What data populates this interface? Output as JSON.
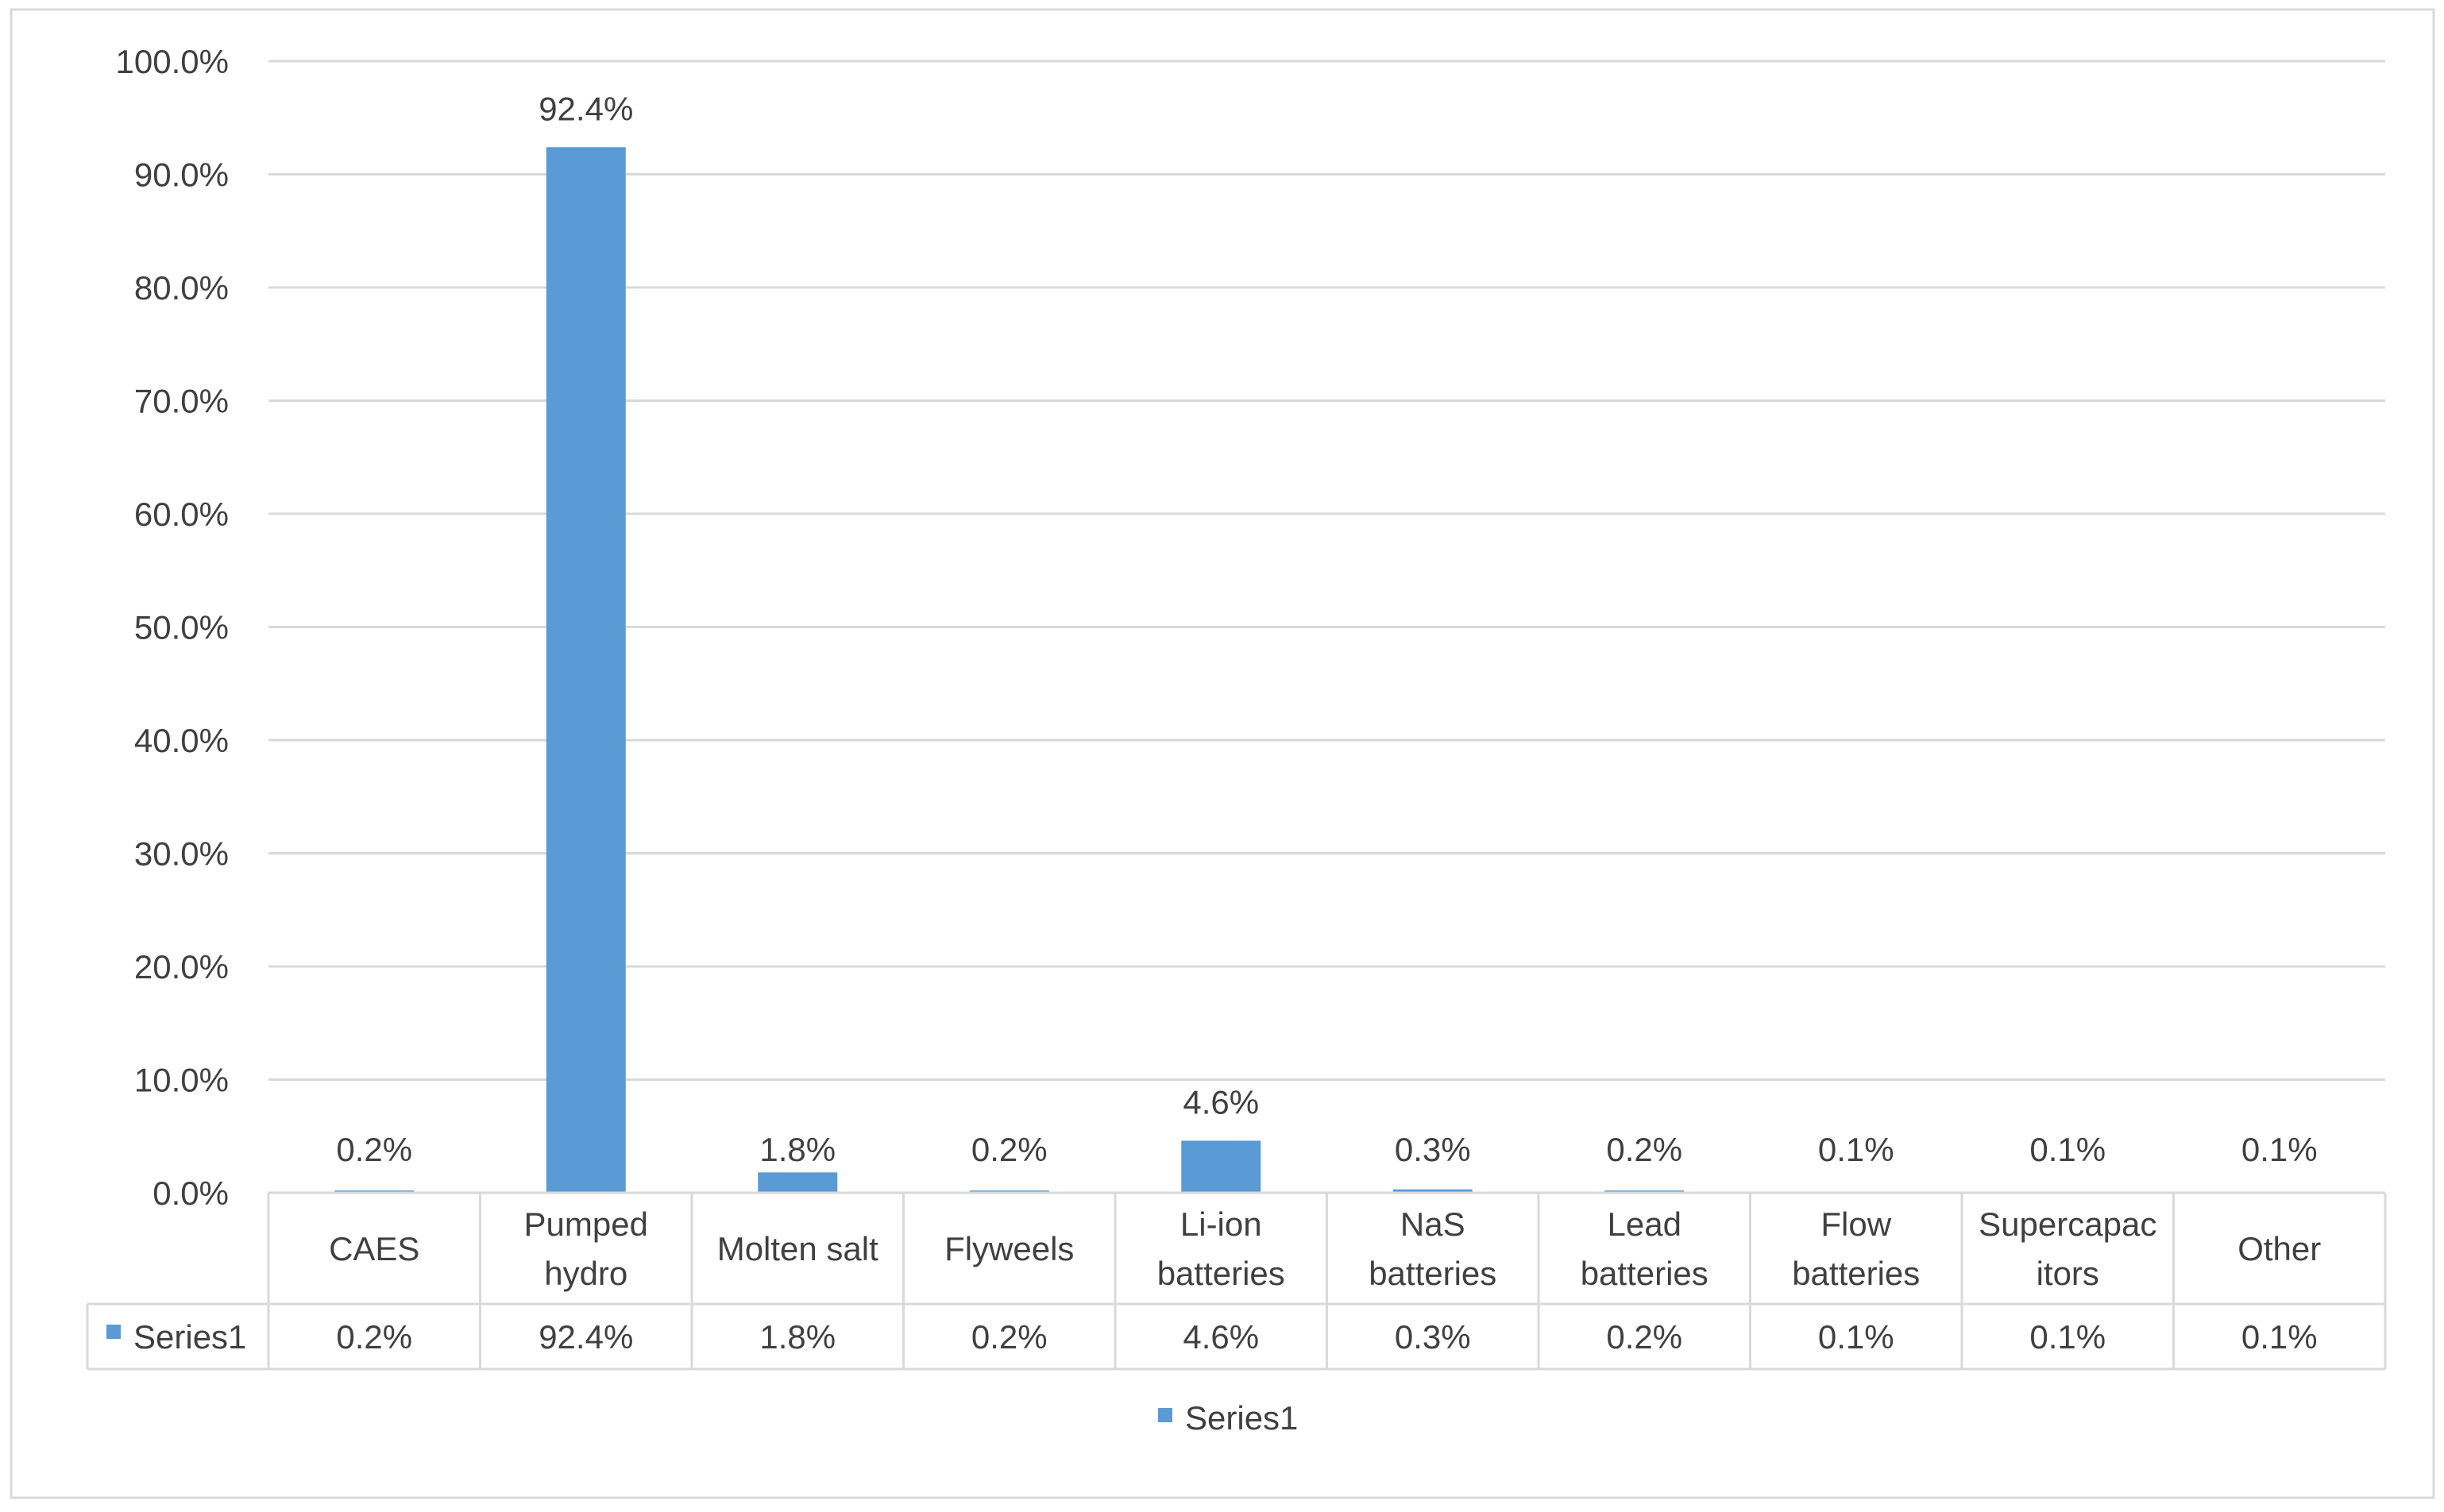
{
  "chart_data": {
    "type": "bar",
    "categories": [
      [
        "CAES"
      ],
      [
        "Pumped",
        "hydro"
      ],
      [
        "Molten salt"
      ],
      [
        "Flyweels"
      ],
      [
        "Li-ion",
        "batteries"
      ],
      [
        "NaS",
        "batteries"
      ],
      [
        "Lead",
        "batteries"
      ],
      [
        "Flow",
        "batteries"
      ],
      [
        "Supercapac",
        "itors"
      ],
      [
        "Other"
      ]
    ],
    "series": [
      {
        "name": "Series1",
        "values": [
          0.2,
          92.4,
          1.8,
          0.2,
          4.6,
          0.3,
          0.2,
          0.1,
          0.1,
          0.1
        ],
        "labels": [
          "0.2%",
          "92.4%",
          "1.8%",
          "0.2%",
          "4.6%",
          "0.3%",
          "0.2%",
          "0.1%",
          "0.1%",
          "0.1%"
        ]
      }
    ],
    "ylim": [
      0,
      100
    ],
    "y_ticks": [
      "0.0%",
      "10.0%",
      "20.0%",
      "30.0%",
      "40.0%",
      "50.0%",
      "60.0%",
      "70.0%",
      "80.0%",
      "90.0%",
      "100.0%"
    ],
    "grid": true,
    "data_table": true,
    "legend_position": "bottom",
    "legend": [
      "Series1"
    ],
    "colors": {
      "bar": "#5b9bd5",
      "grid": "#d9d9d9",
      "text": "#404040",
      "border": "#d9d9d9"
    }
  }
}
